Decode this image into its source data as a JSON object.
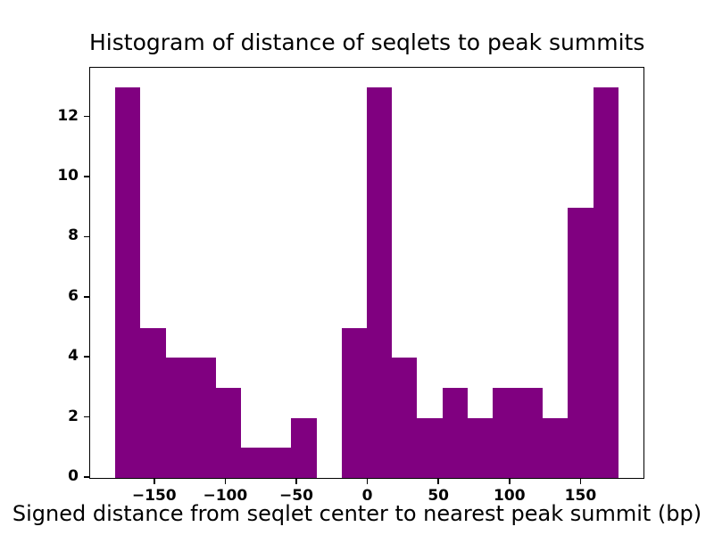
{
  "chart_data": {
    "type": "bar",
    "title": "Histogram of distance of seqlets to peak summits",
    "xlabel": "Signed distance from seqlet center to nearest peak summit (bp)",
    "ylabel": "",
    "bar_color": "#800080",
    "bin_edges": [
      -178.0,
      -160.3,
      -142.6,
      -124.9,
      -107.2,
      -89.5,
      -71.8,
      -54.1,
      -36.4,
      -18.7,
      -1.0,
      16.7,
      34.4,
      52.1,
      69.8,
      87.5,
      105.2,
      122.9,
      140.6,
      158.3,
      176.0
    ],
    "counts": [
      13,
      5,
      4,
      4,
      3,
      1,
      1,
      2,
      0,
      5,
      13,
      4,
      2,
      3,
      2,
      3,
      3,
      2,
      9,
      13
    ],
    "xlim": [
      -195.7,
      193.7
    ],
    "ylim": [
      0,
      13.65
    ],
    "x_ticks": [
      -150,
      -100,
      -50,
      0,
      50,
      100,
      150
    ],
    "y_ticks": [
      0,
      2,
      4,
      6,
      8,
      10,
      12
    ],
    "grid": false,
    "legend": null
  }
}
